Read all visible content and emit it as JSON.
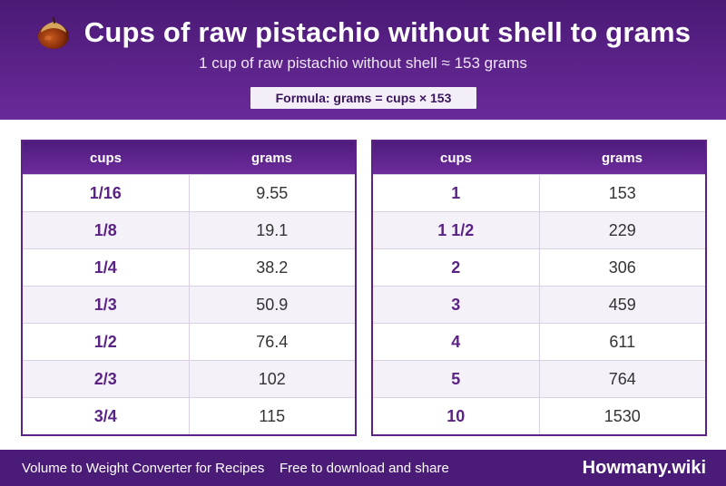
{
  "header": {
    "icon": "pistachio-nut-icon",
    "title": "Cups of raw pistachio without shell to grams",
    "subtitle": "1 cup of raw pistachio without shell ≈ 153 grams",
    "formula": "Formula: grams = cups × 153"
  },
  "tables": [
    {
      "headers": [
        "cups",
        "grams"
      ],
      "rows": [
        [
          "1/16",
          "9.55"
        ],
        [
          "1/8",
          "19.1"
        ],
        [
          "1/4",
          "38.2"
        ],
        [
          "1/3",
          "50.9"
        ],
        [
          "1/2",
          "76.4"
        ],
        [
          "2/3",
          "102"
        ],
        [
          "3/4",
          "115"
        ]
      ]
    },
    {
      "headers": [
        "cups",
        "grams"
      ],
      "rows": [
        [
          "1",
          "153"
        ],
        [
          "1 1/2",
          "229"
        ],
        [
          "2",
          "306"
        ],
        [
          "3",
          "459"
        ],
        [
          "4",
          "611"
        ],
        [
          "5",
          "764"
        ],
        [
          "10",
          "1530"
        ]
      ]
    }
  ],
  "footer": {
    "left": "Volume to Weight Converter for Recipes",
    "tagline": "Free to download and share",
    "brand": "Howmany.wiki"
  },
  "colors": {
    "header_purple": "#5a2385",
    "accent_text": "#5a2385",
    "footer_purple": "#4b1b78"
  }
}
